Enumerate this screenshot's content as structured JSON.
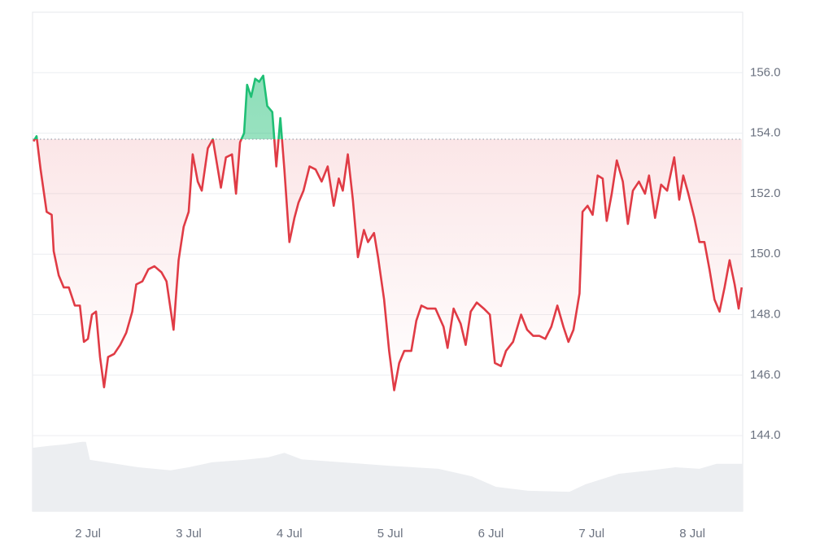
{
  "chart_data": {
    "type": "baseline-line",
    "x": [
      1.46,
      1.49,
      1.53,
      1.59,
      1.64,
      1.66,
      1.71,
      1.76,
      1.81,
      1.87,
      1.92,
      1.96,
      2.0,
      2.04,
      2.08,
      2.12,
      2.16,
      2.2,
      2.26,
      2.32,
      2.38,
      2.44,
      2.48,
      2.54,
      2.6,
      2.66,
      2.73,
      2.78,
      2.85,
      2.9,
      2.95,
      3.0,
      3.04,
      3.09,
      3.13,
      3.19,
      3.24,
      3.29,
      3.32,
      3.37,
      3.43,
      3.47,
      3.51,
      3.55,
      3.58,
      3.62,
      3.66,
      3.7,
      3.74,
      3.78,
      3.83,
      3.87,
      3.91,
      3.95,
      4.0,
      4.05,
      4.09,
      4.14,
      4.2,
      4.26,
      4.32,
      4.38,
      4.44,
      4.49,
      4.53,
      4.58,
      4.63,
      4.68,
      4.74,
      4.78,
      4.84,
      4.88,
      4.94,
      4.99,
      5.04,
      5.09,
      5.14,
      5.21,
      5.26,
      5.31,
      5.37,
      5.45,
      5.53,
      5.57,
      5.63,
      5.7,
      5.75,
      5.8,
      5.86,
      5.93,
      5.99,
      6.04,
      6.1,
      6.15,
      6.22,
      6.3,
      6.36,
      6.42,
      6.48,
      6.54,
      6.6,
      6.66,
      6.72,
      6.77,
      6.82,
      6.88,
      6.91,
      6.96,
      7.01,
      7.06,
      7.11,
      7.15,
      7.2,
      7.25,
      7.31,
      7.36,
      7.41,
      7.47,
      7.53,
      7.57,
      7.63,
      7.69,
      7.75,
      7.82,
      7.87,
      7.91,
      7.96,
      8.02,
      8.07,
      8.12,
      8.17,
      8.22,
      8.27,
      8.32,
      8.37,
      8.42,
      8.46,
      8.49
    ],
    "values": [
      153.73,
      153.9,
      152.8,
      151.4,
      151.3,
      150.1,
      149.3,
      148.9,
      148.9,
      148.3,
      148.3,
      147.1,
      147.2,
      148.0,
      148.1,
      146.6,
      145.6,
      146.6,
      146.7,
      147.0,
      147.4,
      148.1,
      149.0,
      149.1,
      149.5,
      149.6,
      149.4,
      149.1,
      147.5,
      149.8,
      150.9,
      151.4,
      153.3,
      152.4,
      152.1,
      153.5,
      153.8,
      152.8,
      152.2,
      153.2,
      153.3,
      152.0,
      153.7,
      154.0,
      155.6,
      155.2,
      155.8,
      155.7,
      155.9,
      154.9,
      154.7,
      152.9,
      154.5,
      152.8,
      150.4,
      151.2,
      151.7,
      152.1,
      152.9,
      152.8,
      152.4,
      152.9,
      151.6,
      152.5,
      152.1,
      153.3,
      151.8,
      149.9,
      150.8,
      150.4,
      150.7,
      149.9,
      148.5,
      146.8,
      145.5,
      146.4,
      146.8,
      146.8,
      147.8,
      148.3,
      148.2,
      148.2,
      147.6,
      146.9,
      148.2,
      147.7,
      147.0,
      148.1,
      148.4,
      148.2,
      148.0,
      146.4,
      146.3,
      146.8,
      147.1,
      148.0,
      147.5,
      147.3,
      147.3,
      147.2,
      147.6,
      148.3,
      147.6,
      147.1,
      147.5,
      148.7,
      151.4,
      151.6,
      151.3,
      152.6,
      152.5,
      151.1,
      152.0,
      153.1,
      152.4,
      151.0,
      152.1,
      152.4,
      152.0,
      152.6,
      151.2,
      152.3,
      152.1,
      153.2,
      151.8,
      152.6,
      152.0,
      151.2,
      150.4,
      150.4,
      149.5,
      148.5,
      148.1,
      148.9,
      149.8,
      149.0,
      148.2,
      148.9
    ],
    "baseline": 153.8,
    "up_color": "#1fbf75",
    "down_color": "#e03b45",
    "volume": {
      "axis": "y2",
      "color": "#eceef1",
      "x": [
        1.45,
        1.61,
        1.77,
        1.94,
        1.98,
        2.02,
        2.18,
        2.5,
        2.82,
        3.0,
        3.23,
        3.55,
        3.79,
        3.95,
        4.12,
        4.52,
        5.0,
        5.48,
        5.81,
        6.05,
        6.37,
        6.78,
        6.94,
        7.27,
        7.59,
        7.83,
        8.07,
        8.24,
        8.5
      ],
      "values": [
        12.7,
        13.1,
        13.4,
        13.9,
        13.9,
        10.3,
        9.8,
        8.8,
        8.2,
        8.8,
        9.8,
        10.3,
        10.8,
        11.7,
        10.4,
        9.8,
        9.1,
        8.5,
        7.0,
        4.9,
        4.1,
        3.9,
        5.4,
        7.5,
        8.2,
        8.8,
        8.5,
        9.5,
        9.5
      ]
    },
    "xlim": [
      1.45,
      8.5
    ],
    "xticks": [
      {
        "value": 2,
        "label": "2 Jul"
      },
      {
        "value": 3,
        "label": "3 Jul"
      },
      {
        "value": 4,
        "label": "4 Jul"
      },
      {
        "value": 5,
        "label": "5 Jul"
      },
      {
        "value": 6,
        "label": "6 Jul"
      },
      {
        "value": 7,
        "label": "7 Jul"
      },
      {
        "value": 8,
        "label": "8 Jul"
      }
    ],
    "ylim": [
      141.5,
      158
    ],
    "yticks": [
      {
        "value": 144,
        "label": "144.0"
      },
      {
        "value": 146,
        "label": "146.0"
      },
      {
        "value": 148,
        "label": "148.0"
      },
      {
        "value": 150,
        "label": "150.0"
      },
      {
        "value": 152,
        "label": "152.0"
      },
      {
        "value": 154,
        "label": "154.0"
      },
      {
        "value": 156,
        "label": "156.0"
      }
    ],
    "y2lim": [
      0,
      100
    ],
    "grid": true
  }
}
